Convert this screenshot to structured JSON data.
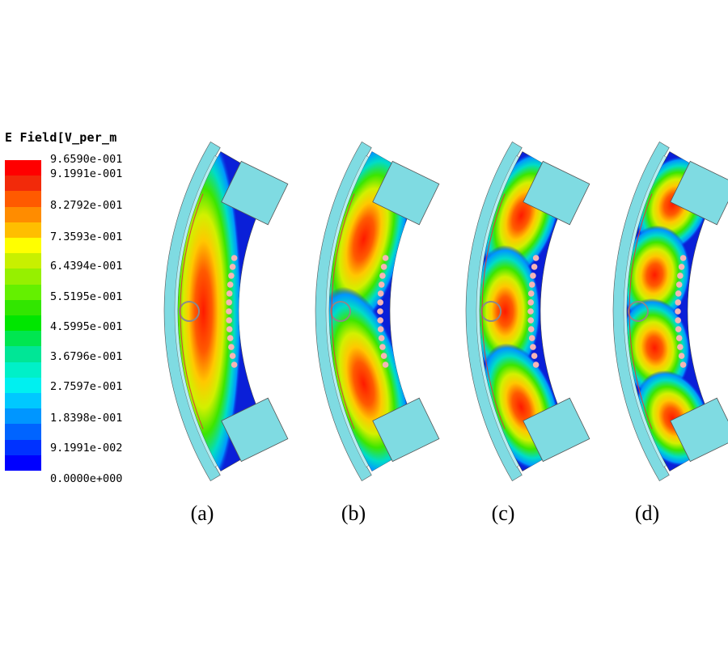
{
  "legend": {
    "title": "E Field[V_per_m",
    "ticks": [
      "9.6590e-001",
      "9.1991e-001",
      "8.2792e-001",
      "7.3593e-001",
      "6.4394e-001",
      "5.5195e-001",
      "4.5995e-001",
      "3.6796e-001",
      "2.7597e-001",
      "1.8398e-001",
      "9.1991e-002",
      "0.0000e+000"
    ],
    "colors": [
      "#ff0000",
      "#f22a0a",
      "#ff5a00",
      "#ff8c00",
      "#ffbe00",
      "#ffff00",
      "#c8f000",
      "#96f000",
      "#64f000",
      "#32e600",
      "#00e600",
      "#00e650",
      "#00e696",
      "#00f0c8",
      "#00f0f0",
      "#00c8ff",
      "#0096ff",
      "#0064ff",
      "#0032ff",
      "#0000ff"
    ]
  },
  "panels": [
    {
      "caption": "(a)",
      "modes": 1
    },
    {
      "caption": "(b)",
      "modes": 2
    },
    {
      "caption": "(c)",
      "modes": 3
    },
    {
      "caption": "(d)",
      "modes": 4
    }
  ],
  "colors": {
    "metal": "#7fdbe2",
    "cavity": "#0a1fd8",
    "via": "#f5b5b5",
    "loop": "#8a8a8a"
  }
}
